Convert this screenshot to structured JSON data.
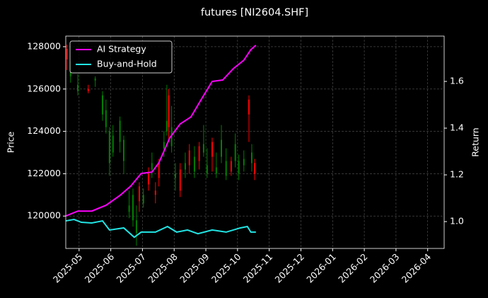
{
  "chart_data": {
    "type": "candlestick",
    "title": "futures [NI2604.SHF]",
    "ylabel": "Price",
    "y2label": "Return",
    "background": "#000000",
    "up_color": "#ff0000",
    "down_color": "#008000",
    "grid": true,
    "legend": "upper left",
    "xlim": [
      -0.42,
      11.52
    ],
    "xticks": [
      {
        "value": 0,
        "label": "2025-05"
      },
      {
        "value": 1,
        "label": "2025-06"
      },
      {
        "value": 2,
        "label": "2025-07"
      },
      {
        "value": 3,
        "label": "2025-08"
      },
      {
        "value": 4,
        "label": "2025-09"
      },
      {
        "value": 5,
        "label": "2025-10"
      },
      {
        "value": 6,
        "label": "2025-11"
      },
      {
        "value": 7,
        "label": "2025-12"
      },
      {
        "value": 8,
        "label": "2026-01"
      },
      {
        "value": 9,
        "label": "2026-02"
      },
      {
        "value": 10,
        "label": "2026-03"
      },
      {
        "value": 11,
        "label": "2026-04"
      }
    ],
    "ylim": [
      118470,
      128500
    ],
    "yticks": [
      120000,
      122000,
      124000,
      126000,
      128000
    ],
    "y2lim": [
      0.885,
      1.794
    ],
    "y2ticks": [
      {
        "value": 1.0,
        "label": "1.0"
      },
      1.2,
      1.4,
      1.6
    ],
    "x": [
      -0.38,
      -0.27,
      -0.04,
      0.29,
      0.51,
      0.74,
      0.85,
      0.96,
      1.07,
      1.29,
      1.41,
      1.58,
      1.7,
      1.81,
      1.9,
      2.03,
      2.19,
      2.3,
      2.41,
      2.52,
      2.68,
      2.77,
      2.83,
      2.92,
      3.04,
      3.19,
      3.35,
      3.48,
      3.64,
      3.79,
      3.93,
      4.04,
      4.2,
      4.33,
      4.49,
      4.64,
      4.8,
      4.93,
      5.04,
      5.2,
      5.36,
      5.45,
      5.54
    ],
    "open": [
      127400,
      126800,
      126200,
      125900,
      126500,
      125700,
      125000,
      124000,
      123800,
      124500,
      123600,
      120500,
      121000,
      119800,
      120700,
      121000,
      121500,
      122500,
      121000,
      121800,
      123500,
      124500,
      124200,
      124200,
      122000,
      121200,
      122500,
      122400,
      122800,
      122600,
      123400,
      122400,
      122800,
      122300,
      123600,
      122600,
      122100,
      123400,
      122600,
      122700,
      124800,
      123000,
      122000
    ],
    "high": [
      128100,
      127300,
      126700,
      126200,
      126600,
      125900,
      125500,
      124200,
      124300,
      124700,
      123800,
      121200,
      121300,
      120500,
      121600,
      121300,
      122300,
      123000,
      121600,
      122700,
      124000,
      126200,
      126000,
      125200,
      122500,
      122500,
      123000,
      123400,
      123300,
      123500,
      124300,
      123200,
      123700,
      123000,
      124300,
      123200,
      122800,
      123900,
      122900,
      123100,
      125700,
      123400,
      122700
    ],
    "low": [
      126900,
      126300,
      125700,
      125800,
      126100,
      124500,
      123900,
      121900,
      122800,
      123000,
      122000,
      119900,
      119500,
      118600,
      120200,
      120400,
      121200,
      121800,
      120600,
      121400,
      122800,
      123800,
      123500,
      123000,
      121200,
      120900,
      121800,
      122000,
      121800,
      122200,
      122800,
      121800,
      122100,
      121800,
      122500,
      121700,
      121900,
      122300,
      121700,
      122100,
      123500,
      122100,
      121700
    ],
    "close": [
      127900,
      126600,
      125900,
      126000,
      126400,
      124800,
      124200,
      122500,
      123000,
      123500,
      122600,
      120200,
      119800,
      119200,
      121400,
      120600,
      122000,
      122200,
      121200,
      122500,
      123200,
      124000,
      125700,
      123300,
      121800,
      122200,
      122200,
      123100,
      122100,
      123300,
      123000,
      122000,
      123500,
      122000,
      122800,
      121900,
      122600,
      122600,
      122000,
      122400,
      125500,
      122500,
      122500
    ],
    "series": [
      {
        "name": "AI Strategy",
        "color": "#ff00ff",
        "axis": "y2",
        "x": [
          -0.42,
          -0.04,
          0.4,
          0.85,
          1.07,
          1.29,
          1.63,
          1.96,
          2.3,
          2.52,
          2.86,
          3.19,
          3.53,
          3.86,
          4.2,
          4.53,
          4.87,
          5.2,
          5.42,
          5.58
        ],
        "values": [
          1.024,
          1.045,
          1.045,
          1.07,
          1.091,
          1.112,
          1.152,
          1.206,
          1.212,
          1.252,
          1.358,
          1.418,
          1.448,
          1.524,
          1.6,
          1.606,
          1.655,
          1.691,
          1.736,
          1.755
        ]
      },
      {
        "name": "Buy-and-Hold",
        "color": "#22e5e5",
        "axis": "y2",
        "x": [
          -0.42,
          -0.16,
          0.07,
          0.4,
          0.74,
          0.96,
          1.41,
          1.74,
          1.96,
          2.41,
          2.79,
          3.08,
          3.42,
          3.75,
          4.2,
          4.64,
          5.09,
          5.31,
          5.42,
          5.58
        ],
        "values": [
          1.003,
          1.009,
          0.997,
          0.994,
          1.003,
          0.964,
          0.973,
          0.933,
          0.955,
          0.955,
          0.979,
          0.955,
          0.964,
          0.948,
          0.964,
          0.955,
          0.973,
          0.979,
          0.955,
          0.955
        ]
      }
    ]
  }
}
